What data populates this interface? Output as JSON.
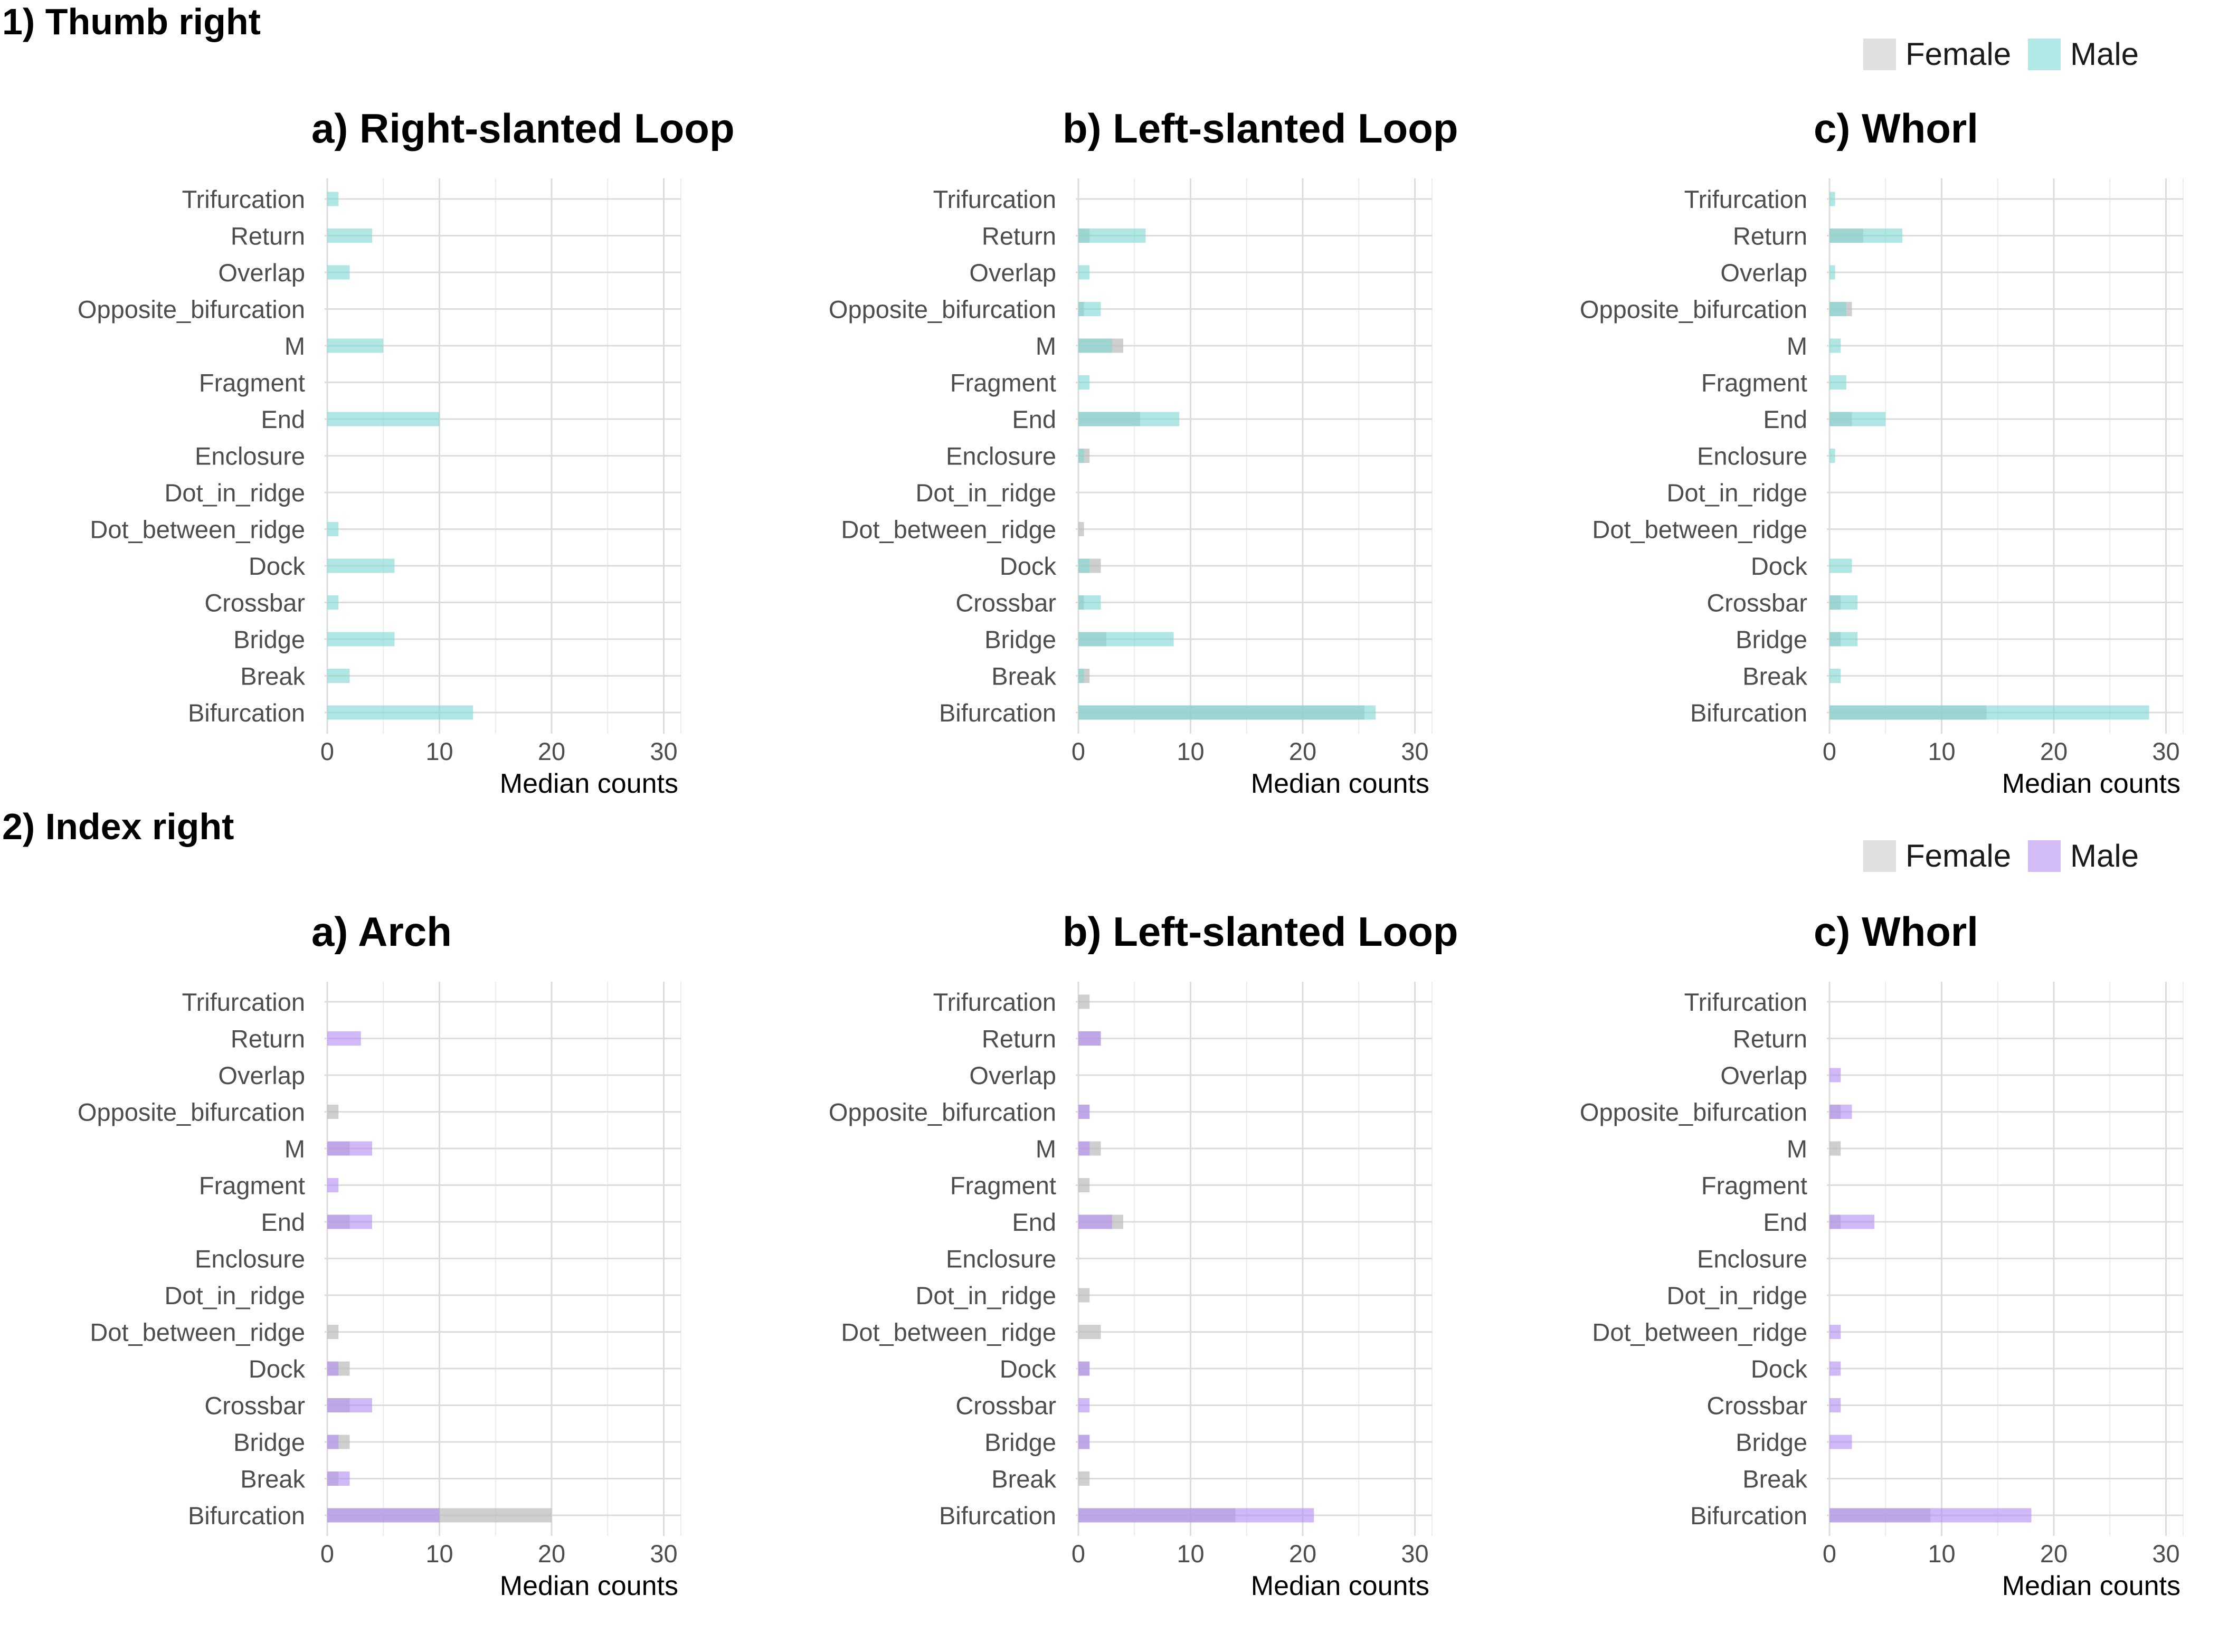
{
  "colors": {
    "female": "#bdbdbd",
    "thumb_male": "#7fd8d4",
    "index_male": "#b58df0"
  },
  "chart_data": [
    {
      "section": "1) Thumb right",
      "legend": [
        "Female",
        "Male"
      ],
      "panels": [
        {
          "type": "bar",
          "orientation": "horizontal",
          "title": "a) Right-slanted Loop",
          "xlabel": "Median counts",
          "xlim": [
            0,
            30
          ],
          "xticks": [
            0,
            10,
            20,
            30
          ],
          "categories": [
            "Trifurcation",
            "Return",
            "Overlap",
            "Opposite_bifurcation",
            "M",
            "Fragment",
            "End",
            "Enclosure",
            "Dot_in_ridge",
            "Dot_between_ridge",
            "Dock",
            "Crossbar",
            "Bridge",
            "Break",
            "Bifurcation"
          ],
          "series": [
            {
              "name": "Female",
              "values": [
                0,
                0,
                0,
                0,
                0,
                0,
                0,
                0,
                0,
                0,
                0,
                0,
                0,
                0,
                0
              ]
            },
            {
              "name": "Male",
              "values": [
                1,
                4,
                2,
                0,
                5,
                0,
                10,
                0,
                0,
                1,
                6,
                1,
                6,
                2,
                13
              ]
            }
          ]
        },
        {
          "type": "bar",
          "orientation": "horizontal",
          "title": "b) Left-slanted Loop",
          "xlabel": "Median counts",
          "xlim": [
            0,
            30
          ],
          "xticks": [
            0,
            10,
            20,
            30
          ],
          "categories": [
            "Trifurcation",
            "Return",
            "Overlap",
            "Opposite_bifurcation",
            "M",
            "Fragment",
            "End",
            "Enclosure",
            "Dot_in_ridge",
            "Dot_between_ridge",
            "Dock",
            "Crossbar",
            "Bridge",
            "Break",
            "Bifurcation"
          ],
          "series": [
            {
              "name": "Female",
              "values": [
                0,
                1,
                0,
                0.5,
                4,
                0,
                5.5,
                1,
                0,
                0.5,
                2,
                0.5,
                2.5,
                1,
                25.5
              ]
            },
            {
              "name": "Male",
              "values": [
                0,
                6,
                1,
                2,
                3,
                1,
                9,
                0.5,
                0,
                0,
                1,
                2,
                8.5,
                0.5,
                26.5
              ]
            }
          ]
        },
        {
          "type": "bar",
          "orientation": "horizontal",
          "title": "c) Whorl",
          "xlabel": "Median counts",
          "xlim": [
            0,
            30
          ],
          "xticks": [
            0,
            10,
            20,
            30
          ],
          "categories": [
            "Trifurcation",
            "Return",
            "Overlap",
            "Opposite_bifurcation",
            "M",
            "Fragment",
            "End",
            "Enclosure",
            "Dot_in_ridge",
            "Dot_between_ridge",
            "Dock",
            "Crossbar",
            "Bridge",
            "Break",
            "Bifurcation"
          ],
          "series": [
            {
              "name": "Female",
              "values": [
                0,
                3,
                0,
                2,
                0,
                0,
                2,
                0,
                0,
                0,
                0,
                1,
                1,
                0,
                14
              ]
            },
            {
              "name": "Male",
              "values": [
                0.5,
                6.5,
                0.5,
                1.5,
                1,
                1.5,
                5,
                0.5,
                0,
                0,
                2,
                2.5,
                2.5,
                1,
                28.5
              ]
            }
          ]
        }
      ]
    },
    {
      "section": "2) Index right",
      "legend": [
        "Female",
        "Male"
      ],
      "panels": [
        {
          "type": "bar",
          "orientation": "horizontal",
          "title": "a) Arch",
          "xlabel": "Median counts",
          "xlim": [
            0,
            30
          ],
          "xticks": [
            0,
            10,
            20,
            30
          ],
          "categories": [
            "Trifurcation",
            "Return",
            "Overlap",
            "Opposite_bifurcation",
            "M",
            "Fragment",
            "End",
            "Enclosure",
            "Dot_in_ridge",
            "Dot_between_ridge",
            "Dock",
            "Crossbar",
            "Bridge",
            "Break",
            "Bifurcation"
          ],
          "series": [
            {
              "name": "Female",
              "values": [
                0,
                0,
                0,
                1,
                2,
                0,
                2,
                0,
                0,
                1,
                2,
                2,
                2,
                1,
                20
              ]
            },
            {
              "name": "Male",
              "values": [
                0,
                3,
                0,
                0,
                4,
                1,
                4,
                0,
                0,
                0,
                1,
                4,
                1,
                2,
                10
              ]
            }
          ]
        },
        {
          "type": "bar",
          "orientation": "horizontal",
          "title": "b) Left-slanted Loop",
          "xlabel": "Median counts",
          "xlim": [
            0,
            30
          ],
          "xticks": [
            0,
            10,
            20,
            30
          ],
          "categories": [
            "Trifurcation",
            "Return",
            "Overlap",
            "Opposite_bifurcation",
            "M",
            "Fragment",
            "End",
            "Enclosure",
            "Dot_in_ridge",
            "Dot_between_ridge",
            "Dock",
            "Crossbar",
            "Bridge",
            "Break",
            "Bifurcation"
          ],
          "series": [
            {
              "name": "Female",
              "values": [
                1,
                2,
                0,
                1,
                2,
                1,
                4,
                0,
                1,
                2,
                1,
                0,
                1,
                1,
                14
              ]
            },
            {
              "name": "Male",
              "values": [
                0,
                2,
                0,
                1,
                1,
                0,
                3,
                0,
                0,
                0,
                1,
                1,
                1,
                0,
                21
              ]
            }
          ]
        },
        {
          "type": "bar",
          "orientation": "horizontal",
          "title": "c) Whorl",
          "xlabel": "Median counts",
          "xlim": [
            0,
            30
          ],
          "xticks": [
            0,
            10,
            20,
            30
          ],
          "categories": [
            "Trifurcation",
            "Return",
            "Overlap",
            "Opposite_bifurcation",
            "M",
            "Fragment",
            "End",
            "Enclosure",
            "Dot_in_ridge",
            "Dot_between_ridge",
            "Dock",
            "Crossbar",
            "Bridge",
            "Break",
            "Bifurcation"
          ],
          "series": [
            {
              "name": "Female",
              "values": [
                0,
                0,
                0,
                1,
                1,
                0,
                1,
                0,
                0,
                0,
                0,
                0,
                0,
                0,
                9
              ]
            },
            {
              "name": "Male",
              "values": [
                0,
                0,
                1,
                2,
                0,
                0,
                4,
                0,
                0,
                1,
                1,
                1,
                2,
                0,
                18
              ]
            }
          ]
        }
      ]
    }
  ]
}
